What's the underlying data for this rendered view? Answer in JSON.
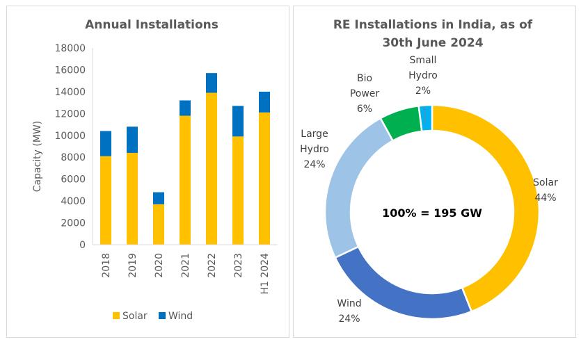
{
  "chart_data": [
    {
      "type": "bar",
      "stacked": true,
      "title": "Annual Installations",
      "xlabel": "",
      "ylabel": "Capacity (MW)",
      "ylim": [
        0,
        18000
      ],
      "yticks": [
        "0",
        "2000",
        "4000",
        "6000",
        "8000",
        "10000",
        "12000",
        "14000",
        "16000",
        "18000"
      ],
      "categories": [
        "2018",
        "2019",
        "2020",
        "2021",
        "2022",
        "2023",
        "H1 2024"
      ],
      "series": [
        {
          "name": "Solar",
          "color": "#FFC000",
          "values": [
            8100,
            8400,
            3700,
            11800,
            13900,
            9900,
            12100
          ]
        },
        {
          "name": "Wind",
          "color": "#0070C0",
          "values": [
            2300,
            2400,
            1100,
            1400,
            1800,
            2800,
            1900
          ]
        }
      ],
      "grid": false,
      "legend": "bottom"
    },
    {
      "type": "pie",
      "donut": true,
      "title_lines": [
        "RE Installations in India, as of",
        "30th June 2024"
      ],
      "center_label": "100% = 195 GW",
      "slices": [
        {
          "name": "Solar",
          "value": 44,
          "label": "44%",
          "color": "#FFC000"
        },
        {
          "name": "Wind",
          "value": 24,
          "label": "24%",
          "color": "#4472C4"
        },
        {
          "name": "Large Hydro",
          "value": 24,
          "label": "24%",
          "color": "#9DC3E6"
        },
        {
          "name": "Bio Power",
          "value": 6,
          "label": "6%",
          "color": "#00B050"
        },
        {
          "name": "Small Hydro",
          "value": 2,
          "label": "2%",
          "color": "#00B0F0"
        }
      ]
    }
  ]
}
